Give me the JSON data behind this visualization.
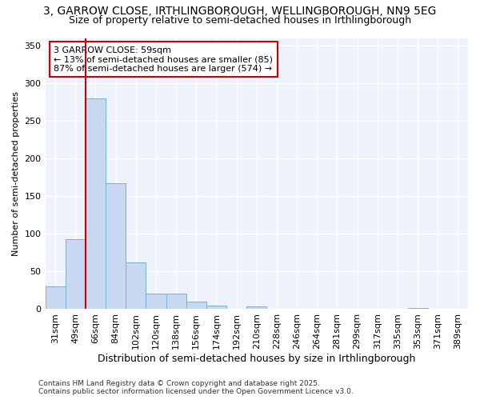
{
  "title_line1": "3, GARROW CLOSE, IRTHLINGBOROUGH, WELLINGBOROUGH, NN9 5EG",
  "title_line2": "Size of property relative to semi-detached houses in Irthlingborough",
  "xlabel": "Distribution of semi-detached houses by size in Irthlingborough",
  "ylabel": "Number of semi-detached properties",
  "bins": [
    "31sqm",
    "49sqm",
    "66sqm",
    "84sqm",
    "102sqm",
    "120sqm",
    "138sqm",
    "156sqm",
    "174sqm",
    "192sqm",
    "210sqm",
    "228sqm",
    "246sqm",
    "264sqm",
    "281sqm",
    "299sqm",
    "317sqm",
    "335sqm",
    "353sqm",
    "371sqm",
    "389sqm"
  ],
  "values": [
    30,
    93,
    280,
    167,
    62,
    21,
    21,
    10,
    5,
    0,
    4,
    0,
    0,
    0,
    0,
    0,
    0,
    0,
    2,
    0,
    0
  ],
  "bar_color": "#c8d8f0",
  "bar_edge_color": "#7aafd4",
  "vline_x": 1.5,
  "vline_color": "#cc0000",
  "annotation_title": "3 GARROW CLOSE: 59sqm",
  "annotation_line1": "← 13% of semi-detached houses are smaller (85)",
  "annotation_line2": "87% of semi-detached houses are larger (574) →",
  "annotation_box_color": "#cc0000",
  "footer_line1": "Contains HM Land Registry data © Crown copyright and database right 2025.",
  "footer_line2": "Contains public sector information licensed under the Open Government Licence v3.0.",
  "ylim": [
    0,
    360
  ],
  "plot_bg_color": "#eef2fb",
  "fig_bg_color": "#ffffff"
}
